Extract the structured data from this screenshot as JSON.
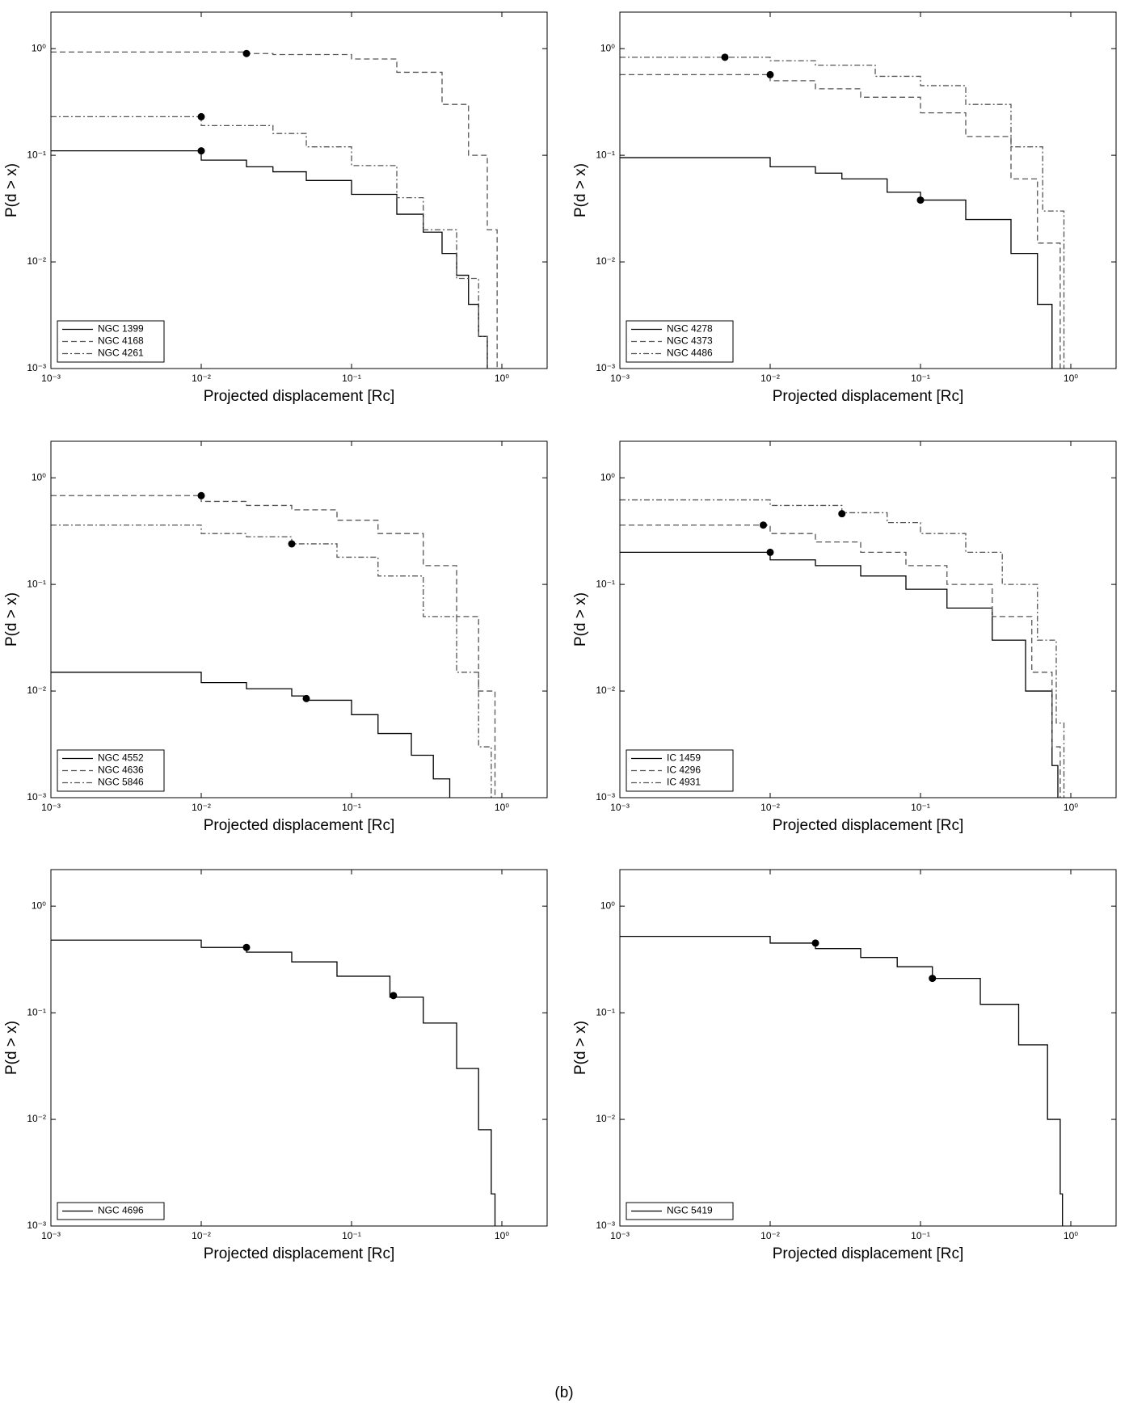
{
  "caption": "(b)",
  "chart_data": [
    {
      "type": "line",
      "xscale": "log",
      "yscale": "log",
      "xlabel": "Projected displacement [Rc]",
      "ylabel": "P(d > x)",
      "xlim": [
        0.001,
        2
      ],
      "ylim": [
        0.001,
        2.2
      ],
      "xticks": [
        {
          "value": 0.001,
          "label": "10⁻³"
        },
        {
          "value": 0.01,
          "label": "10⁻²"
        },
        {
          "value": 0.1,
          "label": "10⁻¹"
        },
        {
          "value": 1,
          "label": "10⁰"
        }
      ],
      "yticks": [
        {
          "value": 0.001,
          "label": "10⁻³"
        },
        {
          "value": 0.01,
          "label": "10⁻²"
        },
        {
          "value": 0.1,
          "label": "10⁻¹"
        },
        {
          "value": 1,
          "label": "10⁰"
        }
      ],
      "legend": "lower left",
      "series": [
        {
          "name": "NGC 1399",
          "color": "#000000",
          "linestyle": "solid",
          "x": [
            0.001,
            0.01,
            0.02,
            0.03,
            0.05,
            0.1,
            0.2,
            0.3,
            0.4,
            0.5,
            0.6,
            0.7,
            0.8
          ],
          "values": [
            0.11,
            0.09,
            0.078,
            0.07,
            0.058,
            0.043,
            0.028,
            0.019,
            0.012,
            0.0075,
            0.004,
            0.002,
            0.001
          ],
          "markers": {
            "x": [
              0.01
            ],
            "values": [
              0.11
            ]
          }
        },
        {
          "name": "NGC 4168",
          "color": "#555555",
          "linestyle": "dashed",
          "x": [
            0.001,
            0.02,
            0.03,
            0.1,
            0.2,
            0.4,
            0.6,
            0.8,
            0.93
          ],
          "values": [
            0.93,
            0.9,
            0.88,
            0.8,
            0.6,
            0.3,
            0.1,
            0.02,
            0.001
          ],
          "markers": {
            "x": [
              0.02
            ],
            "values": [
              0.9
            ]
          }
        },
        {
          "name": "NGC 4261",
          "color": "#555555",
          "linestyle": "dashdot",
          "x": [
            0.001,
            0.01,
            0.03,
            0.05,
            0.1,
            0.2,
            0.3,
            0.5,
            0.7,
            0.8
          ],
          "values": [
            0.23,
            0.19,
            0.16,
            0.12,
            0.08,
            0.04,
            0.02,
            0.007,
            0.002,
            0.001
          ],
          "markers": {
            "x": [
              0.01
            ],
            "values": [
              0.23
            ]
          }
        }
      ]
    },
    {
      "type": "line",
      "xscale": "log",
      "yscale": "log",
      "xlabel": "Projected displacement [Rc]",
      "ylabel": "P(d > x)",
      "xlim": [
        0.001,
        2
      ],
      "ylim": [
        0.001,
        2.2
      ],
      "xticks": [
        {
          "value": 0.001,
          "label": "10⁻³"
        },
        {
          "value": 0.01,
          "label": "10⁻²"
        },
        {
          "value": 0.1,
          "label": "10⁻¹"
        },
        {
          "value": 1,
          "label": "10⁰"
        }
      ],
      "yticks": [
        {
          "value": 0.001,
          "label": "10⁻³"
        },
        {
          "value": 0.01,
          "label": "10⁻²"
        },
        {
          "value": 0.1,
          "label": "10⁻¹"
        },
        {
          "value": 1,
          "label": "10⁰"
        }
      ],
      "legend": "lower left",
      "series": [
        {
          "name": "NGC 4278",
          "color": "#000000",
          "linestyle": "solid",
          "x": [
            0.001,
            0.01,
            0.02,
            0.03,
            0.06,
            0.1,
            0.2,
            0.4,
            0.6,
            0.75
          ],
          "values": [
            0.095,
            0.078,
            0.068,
            0.06,
            0.045,
            0.038,
            0.025,
            0.012,
            0.004,
            0.001
          ],
          "markers": {
            "x": [
              0.1
            ],
            "values": [
              0.038
            ]
          }
        },
        {
          "name": "NGC 4373",
          "color": "#555555",
          "linestyle": "dashed",
          "x": [
            0.001,
            0.01,
            0.02,
            0.04,
            0.1,
            0.2,
            0.4,
            0.6,
            0.85
          ],
          "values": [
            0.57,
            0.5,
            0.42,
            0.35,
            0.25,
            0.15,
            0.06,
            0.015,
            0.001
          ],
          "markers": {
            "x": [
              0.01
            ],
            "values": [
              0.57
            ]
          }
        },
        {
          "name": "NGC 4486",
          "color": "#555555",
          "linestyle": "dashdot",
          "x": [
            0.001,
            0.01,
            0.02,
            0.05,
            0.1,
            0.2,
            0.4,
            0.65,
            0.9
          ],
          "values": [
            0.83,
            0.77,
            0.7,
            0.55,
            0.45,
            0.3,
            0.12,
            0.03,
            0.001
          ],
          "markers": {
            "x": [
              0.005
            ],
            "values": [
              0.83
            ]
          }
        }
      ]
    },
    {
      "type": "line",
      "xscale": "log",
      "yscale": "log",
      "xlabel": "Projected displacement [Rc]",
      "ylabel": "P(d > x)",
      "xlim": [
        0.001,
        2
      ],
      "ylim": [
        0.001,
        2.2
      ],
      "xticks": [
        {
          "value": 0.001,
          "label": "10⁻³"
        },
        {
          "value": 0.01,
          "label": "10⁻²"
        },
        {
          "value": 0.1,
          "label": "10⁻¹"
        },
        {
          "value": 1,
          "label": "10⁰"
        }
      ],
      "yticks": [
        {
          "value": 0.001,
          "label": "10⁻³"
        },
        {
          "value": 0.01,
          "label": "10⁻²"
        },
        {
          "value": 0.1,
          "label": "10⁻¹"
        },
        {
          "value": 1,
          "label": "10⁰"
        }
      ],
      "legend": "lower left",
      "series": [
        {
          "name": "NGC 4552",
          "color": "#000000",
          "linestyle": "solid",
          "x": [
            0.001,
            0.01,
            0.02,
            0.04,
            0.05,
            0.1,
            0.15,
            0.25,
            0.35,
            0.45
          ],
          "values": [
            0.015,
            0.012,
            0.0105,
            0.009,
            0.0082,
            0.006,
            0.004,
            0.0025,
            0.0015,
            0.001
          ],
          "markers": {
            "x": [
              0.05
            ],
            "values": [
              0.0085
            ]
          }
        },
        {
          "name": "NGC 4636",
          "color": "#555555",
          "linestyle": "dashed",
          "x": [
            0.001,
            0.01,
            0.02,
            0.04,
            0.08,
            0.15,
            0.3,
            0.5,
            0.7,
            0.9
          ],
          "values": [
            0.68,
            0.6,
            0.55,
            0.5,
            0.4,
            0.3,
            0.15,
            0.05,
            0.01,
            0.001
          ],
          "markers": {
            "x": [
              0.01
            ],
            "values": [
              0.68
            ]
          }
        },
        {
          "name": "NGC 5846",
          "color": "#555555",
          "linestyle": "dashdot",
          "x": [
            0.001,
            0.01,
            0.02,
            0.04,
            0.08,
            0.15,
            0.3,
            0.5,
            0.7,
            0.85
          ],
          "values": [
            0.36,
            0.3,
            0.28,
            0.24,
            0.18,
            0.12,
            0.05,
            0.015,
            0.003,
            0.001
          ],
          "markers": {
            "x": [
              0.04
            ],
            "values": [
              0.24
            ]
          }
        }
      ]
    },
    {
      "type": "line",
      "xscale": "log",
      "yscale": "log",
      "xlabel": "Projected displacement [Rc]",
      "ylabel": "P(d > x)",
      "xlim": [
        0.001,
        2
      ],
      "ylim": [
        0.001,
        2.2
      ],
      "xticks": [
        {
          "value": 0.001,
          "label": "10⁻³"
        },
        {
          "value": 0.01,
          "label": "10⁻²"
        },
        {
          "value": 0.1,
          "label": "10⁻¹"
        },
        {
          "value": 1,
          "label": "10⁰"
        }
      ],
      "yticks": [
        {
          "value": 0.001,
          "label": "10⁻³"
        },
        {
          "value": 0.01,
          "label": "10⁻²"
        },
        {
          "value": 0.1,
          "label": "10⁻¹"
        },
        {
          "value": 1,
          "label": "10⁰"
        }
      ],
      "legend": "lower left",
      "series": [
        {
          "name": "IC 1459",
          "color": "#000000",
          "linestyle": "solid",
          "x": [
            0.001,
            0.01,
            0.02,
            0.04,
            0.08,
            0.15,
            0.3,
            0.5,
            0.75,
            0.82
          ],
          "values": [
            0.2,
            0.17,
            0.15,
            0.12,
            0.09,
            0.06,
            0.03,
            0.01,
            0.002,
            0.001
          ],
          "markers": {
            "x": [
              0.01
            ],
            "values": [
              0.2
            ]
          }
        },
        {
          "name": "IC 4296",
          "color": "#555555",
          "linestyle": "dashed",
          "x": [
            0.001,
            0.01,
            0.02,
            0.04,
            0.08,
            0.15,
            0.3,
            0.55,
            0.75,
            0.85
          ],
          "values": [
            0.36,
            0.3,
            0.25,
            0.2,
            0.15,
            0.1,
            0.05,
            0.015,
            0.003,
            0.001
          ],
          "markers": {
            "x": [
              0.009
            ],
            "values": [
              0.36
            ]
          }
        },
        {
          "name": "IC 4931",
          "color": "#555555",
          "linestyle": "dashdot",
          "x": [
            0.001,
            0.01,
            0.03,
            0.06,
            0.1,
            0.2,
            0.35,
            0.6,
            0.8,
            0.9
          ],
          "values": [
            0.62,
            0.55,
            0.47,
            0.38,
            0.3,
            0.2,
            0.1,
            0.03,
            0.005,
            0.001
          ],
          "markers": {
            "x": [
              0.03
            ],
            "values": [
              0.46
            ]
          }
        }
      ]
    },
    {
      "type": "line",
      "xscale": "log",
      "yscale": "log",
      "xlabel": "Projected displacement [Rc]",
      "ylabel": "P(d > x)",
      "xlim": [
        0.001,
        2
      ],
      "ylim": [
        0.001,
        2.2
      ],
      "xticks": [
        {
          "value": 0.001,
          "label": "10⁻³"
        },
        {
          "value": 0.01,
          "label": "10⁻²"
        },
        {
          "value": 0.1,
          "label": "10⁻¹"
        },
        {
          "value": 1,
          "label": "10⁰"
        }
      ],
      "yticks": [
        {
          "value": 0.001,
          "label": "10⁻³"
        },
        {
          "value": 0.01,
          "label": "10⁻²"
        },
        {
          "value": 0.1,
          "label": "10⁻¹"
        },
        {
          "value": 1,
          "label": "10⁰"
        }
      ],
      "legend": "lower left",
      "series": [
        {
          "name": "NGC 4696",
          "color": "#000000",
          "linestyle": "solid",
          "x": [
            0.001,
            0.01,
            0.02,
            0.04,
            0.08,
            0.18,
            0.3,
            0.5,
            0.7,
            0.85,
            0.9
          ],
          "values": [
            0.48,
            0.41,
            0.37,
            0.3,
            0.22,
            0.14,
            0.08,
            0.03,
            0.008,
            0.002,
            0.001
          ],
          "markers": {
            "x": [
              0.02,
              0.19
            ],
            "values": [
              0.41,
              0.145
            ]
          }
        }
      ]
    },
    {
      "type": "line",
      "xscale": "log",
      "yscale": "log",
      "xlabel": "Projected displacement [Rc]",
      "ylabel": "P(d > x)",
      "xlim": [
        0.001,
        2
      ],
      "ylim": [
        0.001,
        2.2
      ],
      "xticks": [
        {
          "value": 0.001,
          "label": "10⁻³"
        },
        {
          "value": 0.01,
          "label": "10⁻²"
        },
        {
          "value": 0.1,
          "label": "10⁻¹"
        },
        {
          "value": 1,
          "label": "10⁰"
        }
      ],
      "yticks": [
        {
          "value": 0.001,
          "label": "10⁻³"
        },
        {
          "value": 0.01,
          "label": "10⁻²"
        },
        {
          "value": 0.1,
          "label": "10⁻¹"
        },
        {
          "value": 1,
          "label": "10⁰"
        }
      ],
      "legend": "lower left",
      "series": [
        {
          "name": "NGC 5419",
          "color": "#000000",
          "linestyle": "solid",
          "x": [
            0.001,
            0.01,
            0.02,
            0.04,
            0.07,
            0.12,
            0.25,
            0.45,
            0.7,
            0.85,
            0.88
          ],
          "values": [
            0.52,
            0.45,
            0.4,
            0.33,
            0.27,
            0.21,
            0.12,
            0.05,
            0.01,
            0.002,
            0.001
          ],
          "markers": {
            "x": [
              0.02,
              0.12
            ],
            "values": [
              0.45,
              0.21
            ]
          }
        }
      ]
    }
  ]
}
